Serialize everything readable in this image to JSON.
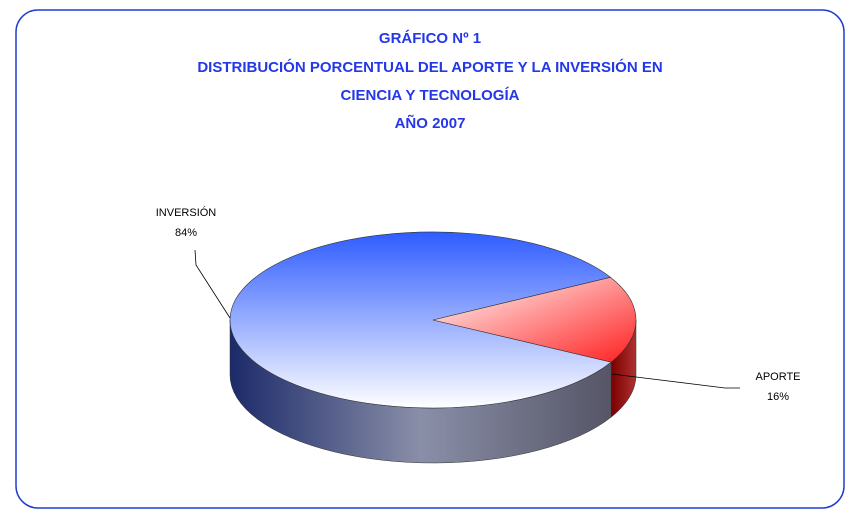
{
  "chart_data": {
    "type": "pie",
    "title": [
      "GRÁFICO Nº 1",
      "DISTRIBUCIÓN PORCENTUAL DEL APORTE Y LA INVERSIÓN EN",
      "CIENCIA Y TECNOLOGÍA",
      "AÑO 2007"
    ],
    "categories": [
      "INVERSIÓN",
      "APORTE"
    ],
    "values": [
      84,
      16
    ],
    "value_labels": [
      "84%",
      "16%"
    ],
    "colors": [
      "#2f5cff",
      "#ff2020"
    ]
  }
}
